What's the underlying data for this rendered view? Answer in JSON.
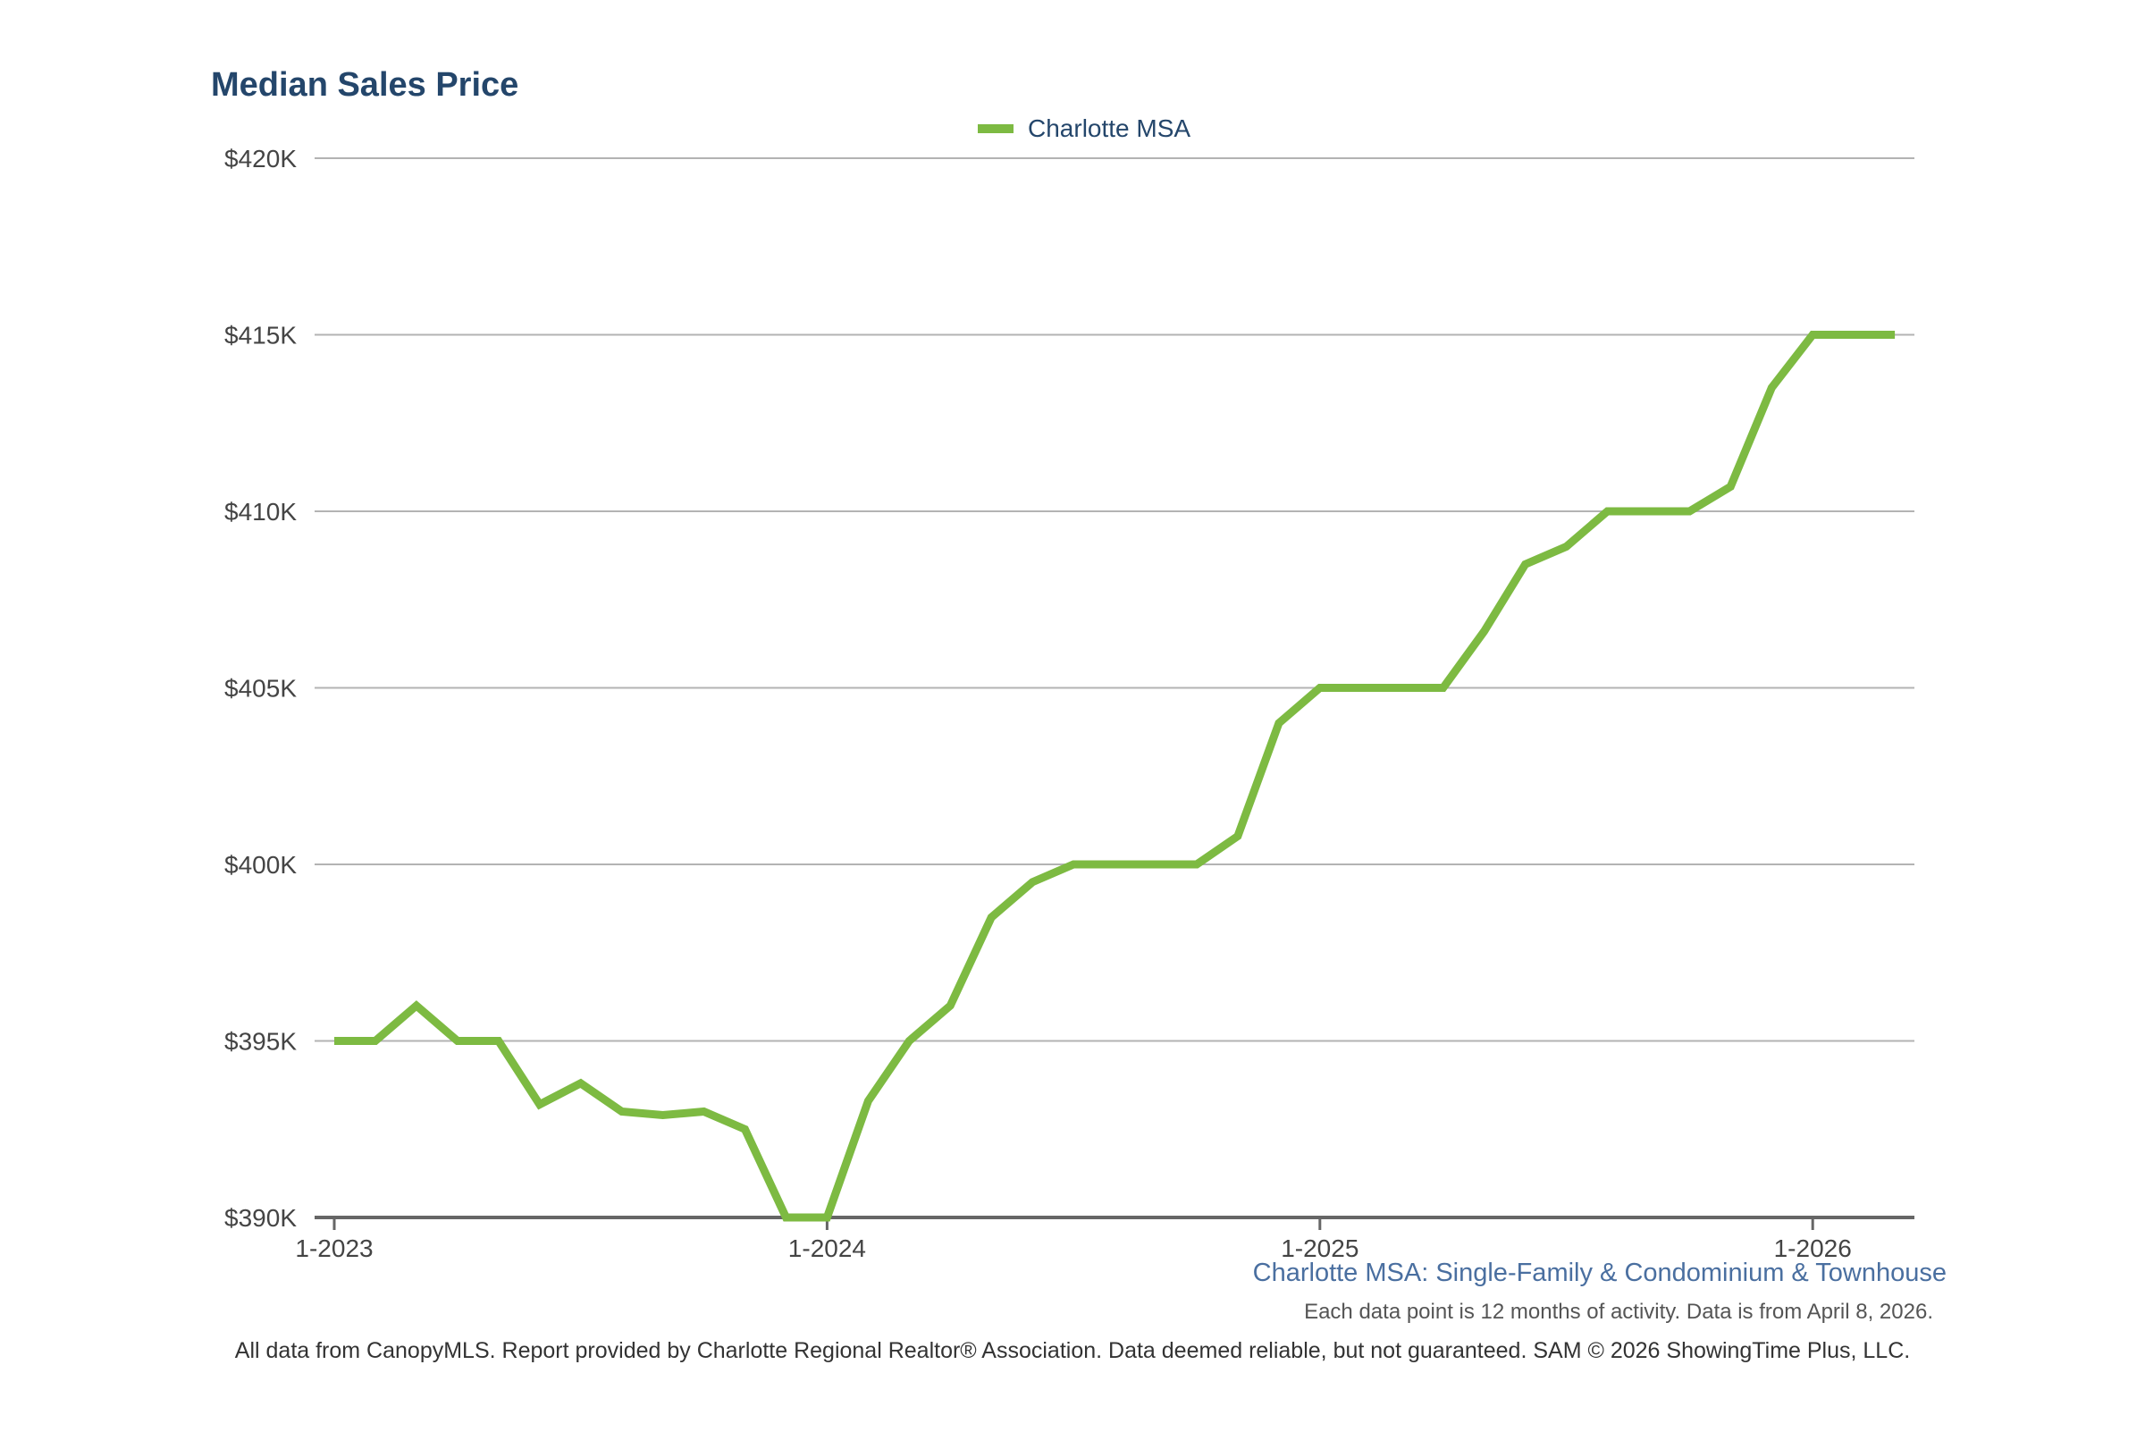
{
  "chart_data": {
    "type": "line",
    "title": "Median Sales Price",
    "x": [
      "1-2023",
      "2-2023",
      "3-2023",
      "4-2023",
      "5-2023",
      "6-2023",
      "7-2023",
      "8-2023",
      "9-2023",
      "10-2023",
      "11-2023",
      "12-2023",
      "1-2024",
      "2-2024",
      "3-2024",
      "4-2024",
      "5-2024",
      "6-2024",
      "7-2024",
      "8-2024",
      "9-2024",
      "10-2024",
      "11-2024",
      "12-2024",
      "1-2025",
      "2-2025",
      "3-2025",
      "4-2025",
      "5-2025",
      "6-2025",
      "7-2025",
      "8-2025",
      "9-2025",
      "10-2025",
      "11-2025",
      "12-2025",
      "1-2026",
      "2-2026",
      "3-2026"
    ],
    "x_tick_labels": [
      "1-2023",
      "1-2024",
      "1-2025",
      "1-2026"
    ],
    "series": [
      {
        "name": "Charlotte MSA",
        "color": "#7dba42",
        "values": [
          395000,
          395000,
          396000,
          395000,
          395000,
          393200,
          393800,
          393000,
          392900,
          393000,
          392500,
          390000,
          390000,
          393300,
          395000,
          396000,
          398500,
          399500,
          400000,
          400000,
          400000,
          400000,
          400800,
          404000,
          405000,
          405000,
          405000,
          405000,
          406600,
          408500,
          409000,
          410000,
          410000,
          410000,
          410700,
          413500,
          415000,
          415000,
          415000
        ]
      }
    ],
    "y_tick_labels": [
      "$390K",
      "$395K",
      "$400K",
      "$405K",
      "$410K",
      "$415K",
      "$420K"
    ],
    "y_ticks": [
      390000,
      395000,
      400000,
      405000,
      410000,
      415000,
      420000
    ],
    "ylim": [
      390000,
      420000
    ],
    "xlabel": "",
    "ylabel": "",
    "grid": true,
    "legend_position": "top-center",
    "subtitle": "Charlotte MSA: Single-Family & Condominium & Townhouse",
    "note": "Each data point is 12 months of activity. Data is from April 8, 2026.",
    "footer": "All data from CanopyMLS. Report provided by Charlotte Regional Realtor® Association. Data deemed reliable, but not guaranteed. SAM © 2026 ShowingTime Plus, LLC."
  }
}
